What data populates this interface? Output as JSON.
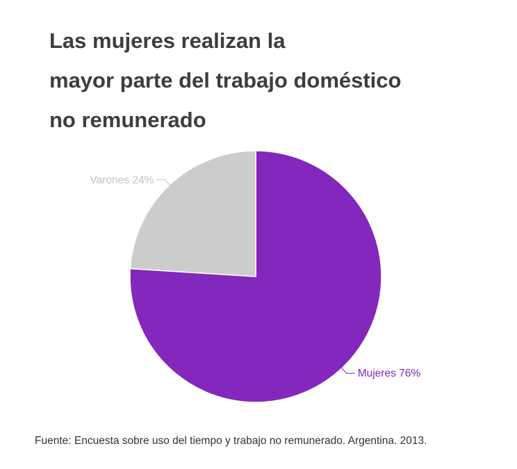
{
  "chart_data": {
    "type": "pie",
    "title_lines": [
      "Las mujeres realizan la",
      "mayor parte del trabajo doméstico",
      "no remunerado"
    ],
    "slices": [
      {
        "label": "Mujeres 76%",
        "value": 76,
        "color": "#8427bd",
        "label_color": "#8427bd"
      },
      {
        "label": "Varones 24%",
        "value": 24,
        "color": "#cccccc",
        "label_color": "#c4c4c4"
      }
    ],
    "source": "Fuente: Encuesta sobre uso del tiempo y trabajo no remunerado. Argentina. 2013."
  }
}
